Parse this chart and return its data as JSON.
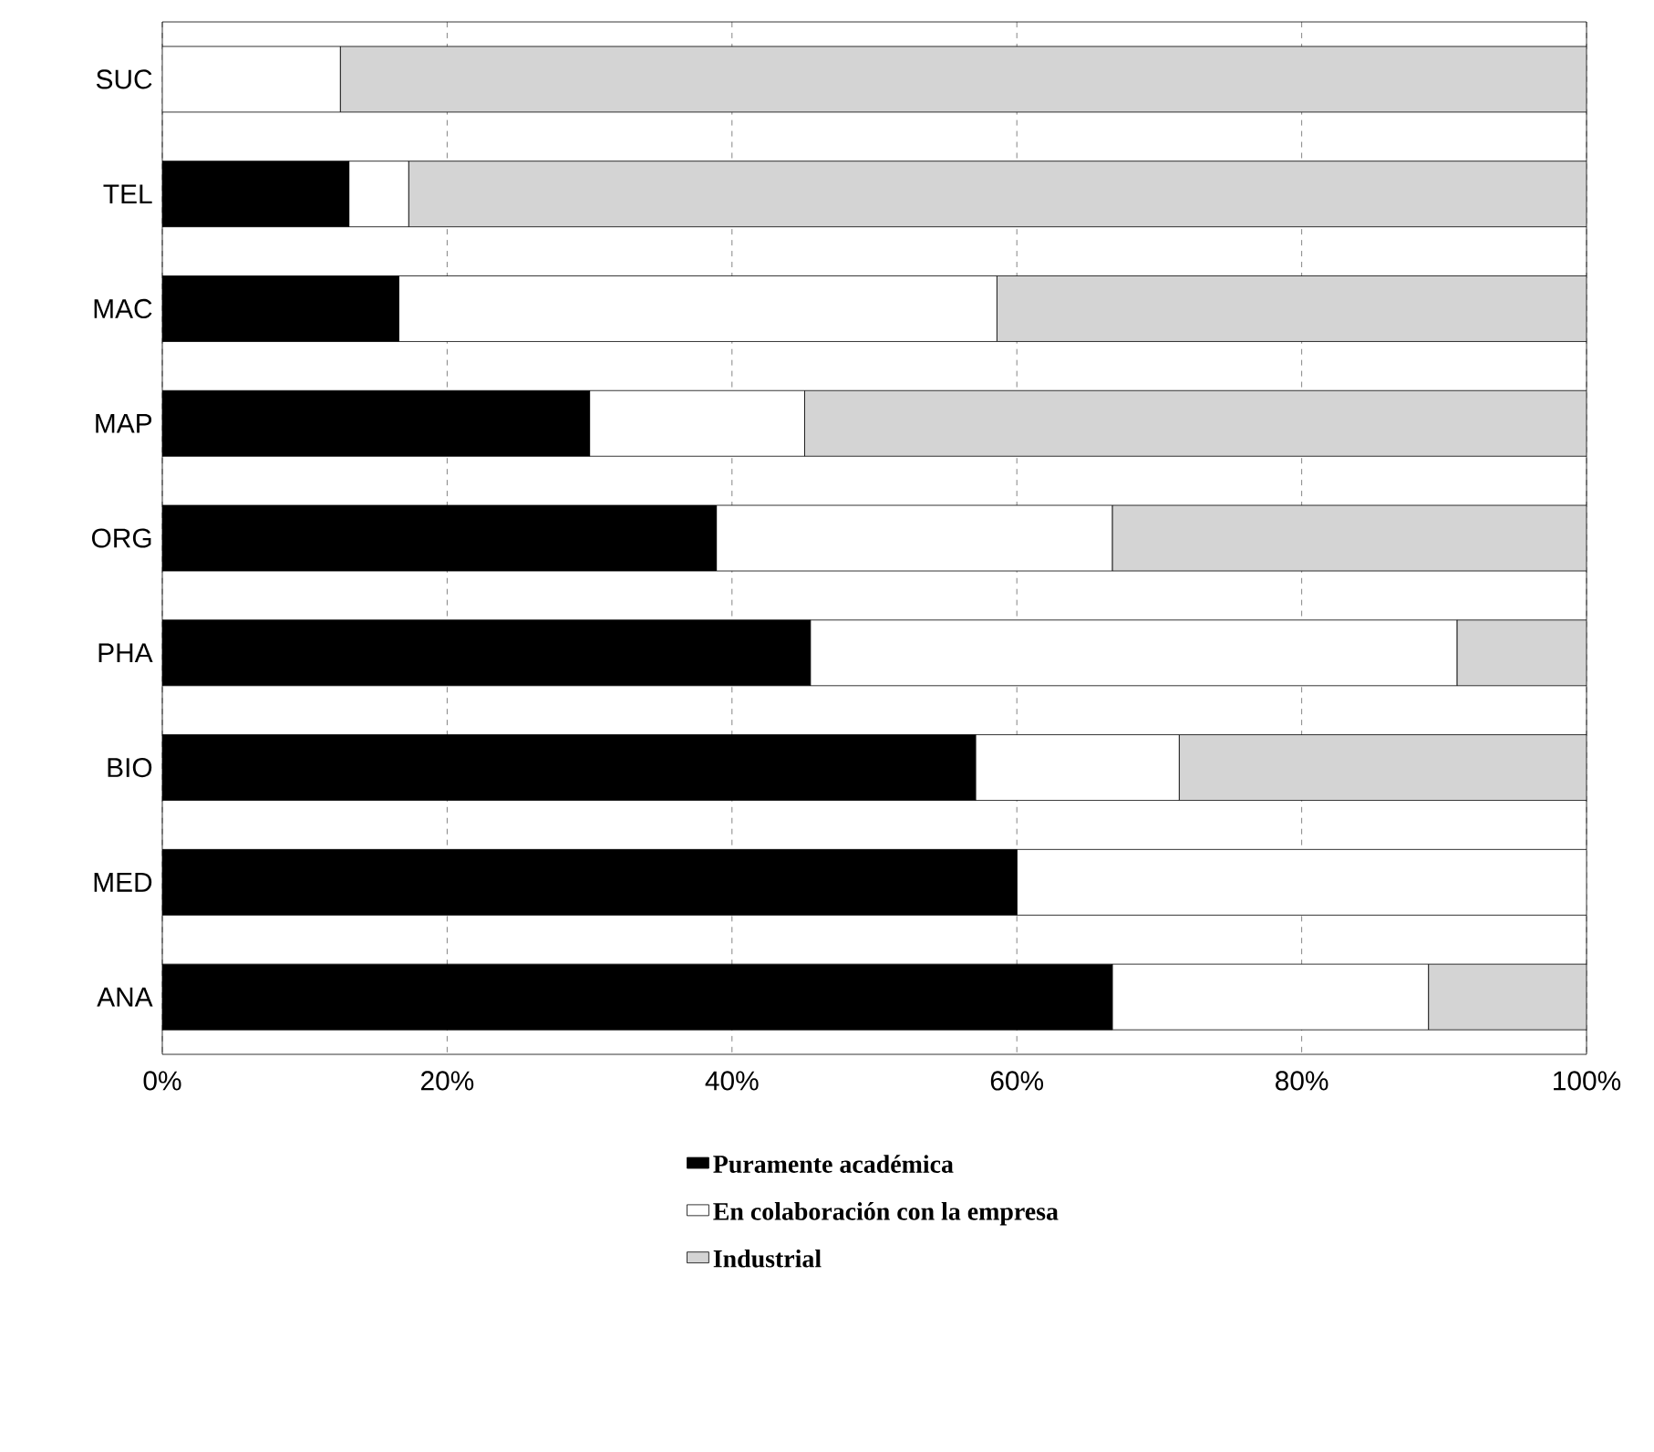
{
  "chart_data": {
    "type": "bar",
    "orientation": "horizontal",
    "stacked": true,
    "categories": [
      "SUC",
      "TEL",
      "MAC",
      "MAP",
      "ORG",
      "PHA",
      "BIO",
      "MED",
      "ANA"
    ],
    "series": [
      {
        "name": "Puramente académica",
        "color": "#000000",
        "values": [
          0,
          13.1,
          16.6,
          30.0,
          38.9,
          45.5,
          57.1,
          60.0,
          66.7
        ]
      },
      {
        "name": "En colaboración con la empresa",
        "color": "#ffffff",
        "values": [
          12.5,
          4.2,
          42.0,
          15.1,
          27.8,
          45.4,
          14.3,
          40.0,
          22.2
        ]
      },
      {
        "name": "Industrial",
        "color": "#d4d4d4",
        "values": [
          87.5,
          82.7,
          41.4,
          54.9,
          33.3,
          9.1,
          28.6,
          0,
          11.1
        ]
      }
    ],
    "xlim": [
      0,
      100
    ],
    "xticks": [
      {
        "value": 0,
        "label": "0%"
      },
      {
        "value": 20,
        "label": "20%"
      },
      {
        "value": 40,
        "label": "40%"
      },
      {
        "value": 60,
        "label": "60%"
      },
      {
        "value": 80,
        "label": "80%"
      },
      {
        "value": 100,
        "label": "100%"
      }
    ],
    "grid": "x",
    "legend": "bottom"
  }
}
